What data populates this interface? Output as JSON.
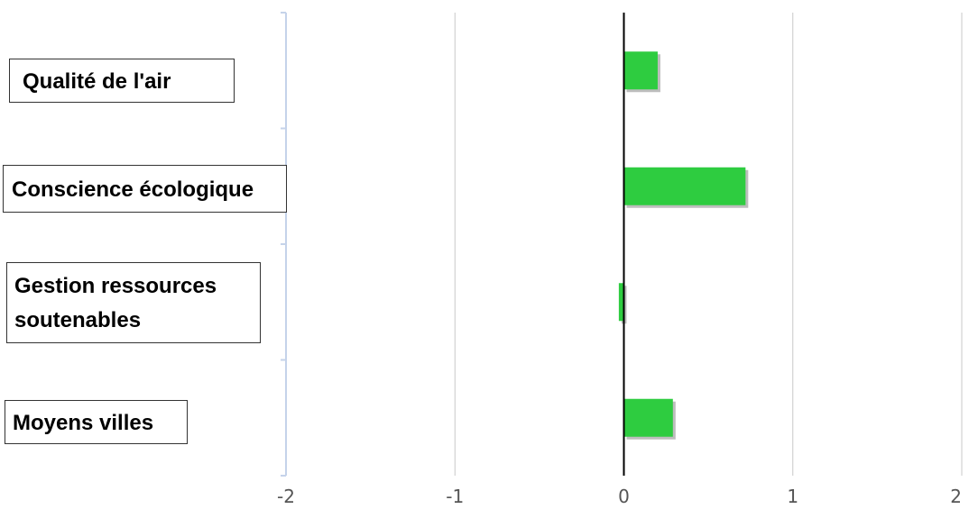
{
  "chart_data": {
    "type": "bar",
    "orientation": "horizontal",
    "categories": [
      "Qualité de l'air",
      "Conscience écologique",
      "Gestion ressources soutenables",
      "Moyens villes"
    ],
    "category_lines": [
      [
        "Qualité de l'air"
      ],
      [
        "Conscience écologique"
      ],
      [
        "Gestion ressources",
        "soutenables"
      ],
      [
        "Moyens villes"
      ]
    ],
    "values": [
      0.2,
      0.72,
      -0.03,
      0.29
    ],
    "xlim": [
      -2,
      2
    ],
    "xticks": [
      -2,
      -1,
      0,
      1,
      2
    ],
    "xtick_labels": [
      "-2",
      "-1",
      "0",
      "1",
      "2"
    ],
    "grid": true,
    "colors": {
      "bar": "#2ECC40",
      "bar_shadow": "#BDBDBD",
      "grid": "#C8C8C8",
      "zero_line": "#000000",
      "axis": "#C5D3EA",
      "tick_label": "#555555"
    }
  }
}
